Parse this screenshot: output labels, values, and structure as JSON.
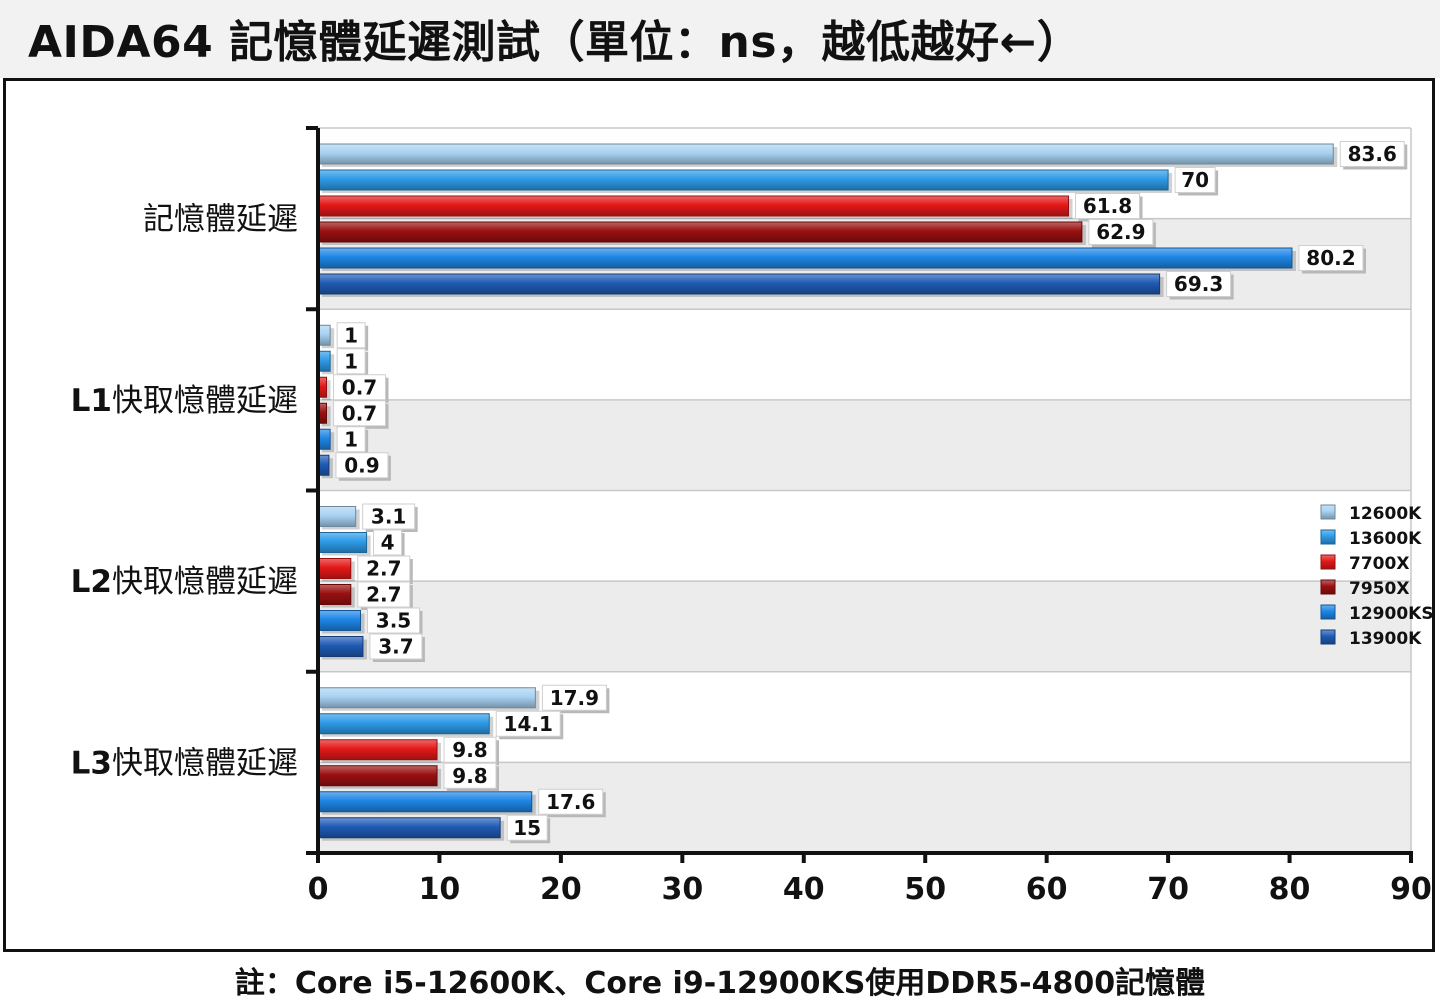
{
  "title": "AIDA64 記憶體延遲測試（單位：ns，越低越好←）",
  "footnote": "註：Core i5-12600K、Core i9-12900KS使用DDR5-4800記憶體",
  "colors": {
    "12600K": "#a8d2f2",
    "13600K": "#2e9be8",
    "7700X": "#e41818",
    "7950X": "#9a1010",
    "12900KS": "#1e86e6",
    "13900K": "#1f5bb5"
  },
  "chart_data": {
    "type": "bar",
    "orientation": "horizontal",
    "categories": [
      "記憶體延遲",
      "L1快取憶體延遲",
      "L2快取憶體延遲",
      "L3快取憶體延遲"
    ],
    "series": [
      {
        "name": "12600K",
        "values": [
          83.6,
          1,
          3.1,
          17.9
        ]
      },
      {
        "name": "13600K",
        "values": [
          70,
          1,
          4,
          14.1
        ]
      },
      {
        "name": "7700X",
        "values": [
          61.8,
          0.7,
          2.7,
          9.8
        ]
      },
      {
        "name": "7950X",
        "values": [
          62.9,
          0.7,
          2.7,
          9.8
        ]
      },
      {
        "name": "12900KS",
        "values": [
          80.2,
          1,
          3.5,
          17.6
        ]
      },
      {
        "name": "13900K",
        "values": [
          69.3,
          0.9,
          3.7,
          15
        ]
      }
    ],
    "xlim": [
      0,
      90
    ],
    "xticks": [
      0,
      10,
      20,
      30,
      40,
      50,
      60,
      70,
      80,
      90
    ],
    "grid": true,
    "legend": "right",
    "data_labels": true
  }
}
